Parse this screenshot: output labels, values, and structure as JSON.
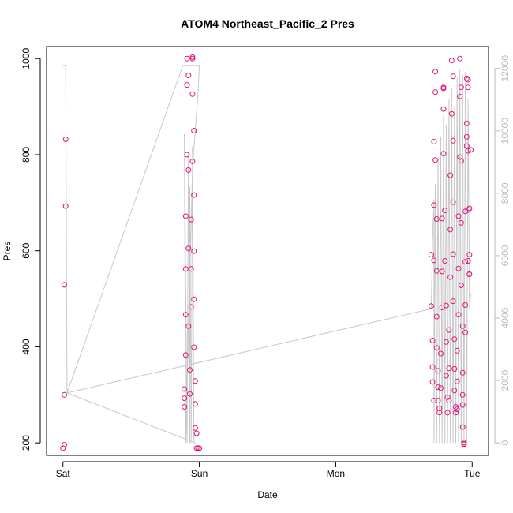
{
  "chart_data": {
    "type": "scatter",
    "title": "ATOM4 Northeast_Pacific_2 Pres",
    "xlabel": "Date",
    "ylabel": "Pres",
    "x_ticks": [
      "Sat",
      "Sun",
      "Mon",
      "Tue"
    ],
    "x_tick_positions": [
      0,
      1,
      2,
      3
    ],
    "y_ticks": [
      200,
      400,
      600,
      800,
      1000
    ],
    "ylim": [
      174,
      1025
    ],
    "xlim": [
      -0.12,
      3.12
    ],
    "y2_ticks": [
      0,
      2000,
      4000,
      6000,
      8000,
      10000,
      12000
    ],
    "y2lim": [
      -400,
      12700
    ],
    "colors": {
      "points": "#e0147a",
      "line": "#c8c8c8",
      "right_axis": "#bbbbbb"
    },
    "series": [
      {
        "kind": "points",
        "values": [
          {
            "x": 0.0,
            "y": 189
          },
          {
            "x": 0.01,
            "y": 196
          },
          {
            "x": 0.01,
            "y": 300
          },
          {
            "x": 0.01,
            "y": 529
          },
          {
            "x": 0.02,
            "y": 693
          },
          {
            "x": 0.02,
            "y": 832
          },
          {
            "x": 0.89,
            "y": 275
          },
          {
            "x": 0.89,
            "y": 293
          },
          {
            "x": 0.89,
            "y": 312
          },
          {
            "x": 0.9,
            "y": 383
          },
          {
            "x": 0.9,
            "y": 467
          },
          {
            "x": 0.9,
            "y": 562
          },
          {
            "x": 0.9,
            "y": 672
          },
          {
            "x": 0.91,
            "y": 800
          },
          {
            "x": 0.91,
            "y": 945
          },
          {
            "x": 0.91,
            "y": 1000
          },
          {
            "x": 0.92,
            "y": 965
          },
          {
            "x": 0.92,
            "y": 768
          },
          {
            "x": 0.92,
            "y": 605
          },
          {
            "x": 0.92,
            "y": 443
          },
          {
            "x": 0.93,
            "y": 352
          },
          {
            "x": 0.93,
            "y": 302
          },
          {
            "x": 0.94,
            "y": 483
          },
          {
            "x": 0.94,
            "y": 562
          },
          {
            "x": 0.94,
            "y": 665
          },
          {
            "x": 0.95,
            "y": 786
          },
          {
            "x": 0.95,
            "y": 926
          },
          {
            "x": 0.95,
            "y": 1003
          },
          {
            "x": 0.95,
            "y": 1000
          },
          {
            "x": 0.96,
            "y": 850
          },
          {
            "x": 0.96,
            "y": 716
          },
          {
            "x": 0.96,
            "y": 599
          },
          {
            "x": 0.96,
            "y": 499
          },
          {
            "x": 0.96,
            "y": 399
          },
          {
            "x": 0.97,
            "y": 329
          },
          {
            "x": 0.97,
            "y": 281
          },
          {
            "x": 0.97,
            "y": 231
          },
          {
            "x": 0.98,
            "y": 220
          },
          {
            "x": 0.98,
            "y": 189
          },
          {
            "x": 0.99,
            "y": 189
          },
          {
            "x": 1.0,
            "y": 189
          },
          {
            "x": 2.7,
            "y": 592
          },
          {
            "x": 2.7,
            "y": 485
          },
          {
            "x": 2.71,
            "y": 413
          },
          {
            "x": 2.71,
            "y": 358
          },
          {
            "x": 2.71,
            "y": 327
          },
          {
            "x": 2.72,
            "y": 288
          },
          {
            "x": 2.72,
            "y": 580
          },
          {
            "x": 2.72,
            "y": 695
          },
          {
            "x": 2.72,
            "y": 827
          },
          {
            "x": 2.73,
            "y": 973
          },
          {
            "x": 2.73,
            "y": 930
          },
          {
            "x": 2.73,
            "y": 789
          },
          {
            "x": 2.74,
            "y": 666
          },
          {
            "x": 2.74,
            "y": 558
          },
          {
            "x": 2.74,
            "y": 463
          },
          {
            "x": 2.74,
            "y": 398
          },
          {
            "x": 2.75,
            "y": 350
          },
          {
            "x": 2.75,
            "y": 316
          },
          {
            "x": 2.75,
            "y": 288
          },
          {
            "x": 2.76,
            "y": 263
          },
          {
            "x": 2.76,
            "y": 272
          },
          {
            "x": 2.77,
            "y": 314
          },
          {
            "x": 2.77,
            "y": 386
          },
          {
            "x": 2.78,
            "y": 482
          },
          {
            "x": 2.78,
            "y": 557
          },
          {
            "x": 2.78,
            "y": 667
          },
          {
            "x": 2.79,
            "y": 802
          },
          {
            "x": 2.79,
            "y": 938
          },
          {
            "x": 2.79,
            "y": 940
          },
          {
            "x": 2.79,
            "y": 895
          },
          {
            "x": 2.8,
            "y": 684
          },
          {
            "x": 2.8,
            "y": 579
          },
          {
            "x": 2.81,
            "y": 486
          },
          {
            "x": 2.81,
            "y": 410
          },
          {
            "x": 2.81,
            "y": 340
          },
          {
            "x": 2.82,
            "y": 295
          },
          {
            "x": 2.82,
            "y": 263
          },
          {
            "x": 2.83,
            "y": 288
          },
          {
            "x": 2.83,
            "y": 355
          },
          {
            "x": 2.83,
            "y": 435
          },
          {
            "x": 2.84,
            "y": 545
          },
          {
            "x": 2.84,
            "y": 644
          },
          {
            "x": 2.84,
            "y": 757
          },
          {
            "x": 2.85,
            "y": 885
          },
          {
            "x": 2.85,
            "y": 996
          },
          {
            "x": 2.86,
            "y": 963
          },
          {
            "x": 2.86,
            "y": 829
          },
          {
            "x": 2.86,
            "y": 701
          },
          {
            "x": 2.86,
            "y": 593
          },
          {
            "x": 2.86,
            "y": 495
          },
          {
            "x": 2.87,
            "y": 416
          },
          {
            "x": 2.87,
            "y": 354
          },
          {
            "x": 2.87,
            "y": 309
          },
          {
            "x": 2.88,
            "y": 275
          },
          {
            "x": 2.88,
            "y": 263
          },
          {
            "x": 2.89,
            "y": 270
          },
          {
            "x": 2.89,
            "y": 328
          },
          {
            "x": 2.89,
            "y": 392
          },
          {
            "x": 2.9,
            "y": 467
          },
          {
            "x": 2.9,
            "y": 563
          },
          {
            "x": 2.9,
            "y": 672
          },
          {
            "x": 2.91,
            "y": 795
          },
          {
            "x": 2.91,
            "y": 921
          },
          {
            "x": 2.91,
            "y": 1000
          },
          {
            "x": 2.92,
            "y": 940
          },
          {
            "x": 2.92,
            "y": 787
          },
          {
            "x": 2.92,
            "y": 658
          },
          {
            "x": 2.92,
            "y": 528
          },
          {
            "x": 2.93,
            "y": 443
          },
          {
            "x": 2.93,
            "y": 346
          },
          {
            "x": 2.93,
            "y": 300
          },
          {
            "x": 2.93,
            "y": 279
          },
          {
            "x": 2.93,
            "y": 233
          },
          {
            "x": 2.94,
            "y": 201
          },
          {
            "x": 2.94,
            "y": 197
          },
          {
            "x": 2.94,
            "y": 198
          },
          {
            "x": 2.95,
            "y": 430
          },
          {
            "x": 2.95,
            "y": 487
          },
          {
            "x": 2.95,
            "y": 577
          },
          {
            "x": 2.95,
            "y": 682
          },
          {
            "x": 2.96,
            "y": 818
          },
          {
            "x": 2.96,
            "y": 837
          },
          {
            "x": 2.96,
            "y": 865
          },
          {
            "x": 2.96,
            "y": 959
          },
          {
            "x": 2.97,
            "y": 956
          },
          {
            "x": 2.97,
            "y": 940
          },
          {
            "x": 2.97,
            "y": 808
          },
          {
            "x": 2.97,
            "y": 685
          },
          {
            "x": 2.97,
            "y": 579
          },
          {
            "x": 2.98,
            "y": 551
          },
          {
            "x": 2.98,
            "y": 551
          },
          {
            "x": 2.98,
            "y": 592
          },
          {
            "x": 2.98,
            "y": 688
          },
          {
            "x": 2.99,
            "y": 810
          }
        ]
      },
      {
        "kind": "line",
        "axis": "right",
        "values": [
          {
            "x": 0.0,
            "y": 12100
          },
          {
            "x": 0.02,
            "y": 12100
          },
          {
            "x": 0.03,
            "y": 1600
          },
          {
            "x": 0.88,
            "y": 12100
          },
          {
            "x": 1.0,
            "y": 12100
          },
          {
            "x": 0.99,
            "y": 11200
          },
          {
            "x": 0.95,
            "y": 8800
          },
          {
            "x": 0.9,
            "y": 0
          },
          {
            "x": 0.89,
            "y": 9900
          },
          {
            "x": 0.91,
            "y": 0
          },
          {
            "x": 0.92,
            "y": 9300
          },
          {
            "x": 0.93,
            "y": 0
          },
          {
            "x": 0.93,
            "y": 8200
          },
          {
            "x": 0.94,
            "y": 0
          },
          {
            "x": 0.95,
            "y": 9500
          },
          {
            "x": 0.96,
            "y": 0
          },
          {
            "x": 0.97,
            "y": 0
          },
          {
            "x": 0.03,
            "y": 1600
          },
          {
            "x": 2.7,
            "y": 4300
          },
          {
            "x": 2.71,
            "y": 6500
          },
          {
            "x": 2.72,
            "y": 7800
          },
          {
            "x": 2.72,
            "y": 0
          },
          {
            "x": 2.73,
            "y": 8300
          },
          {
            "x": 2.74,
            "y": 0
          },
          {
            "x": 2.75,
            "y": 9100
          },
          {
            "x": 2.76,
            "y": 0
          },
          {
            "x": 2.77,
            "y": 9800
          },
          {
            "x": 2.78,
            "y": 0
          },
          {
            "x": 2.79,
            "y": 10500
          },
          {
            "x": 2.8,
            "y": 0
          },
          {
            "x": 2.81,
            "y": 10200
          },
          {
            "x": 2.82,
            "y": 0
          },
          {
            "x": 2.83,
            "y": 11000
          },
          {
            "x": 2.84,
            "y": 0
          },
          {
            "x": 2.85,
            "y": 11400
          },
          {
            "x": 2.86,
            "y": 0
          },
          {
            "x": 2.87,
            "y": 10800
          },
          {
            "x": 2.88,
            "y": 0
          },
          {
            "x": 2.89,
            "y": 11700
          },
          {
            "x": 2.9,
            "y": 0
          },
          {
            "x": 2.91,
            "y": 12000
          },
          {
            "x": 2.92,
            "y": 0
          },
          {
            "x": 2.93,
            "y": 11800
          },
          {
            "x": 2.94,
            "y": 0
          },
          {
            "x": 2.95,
            "y": 11900
          },
          {
            "x": 2.96,
            "y": 0
          },
          {
            "x": 2.97,
            "y": 11000
          },
          {
            "x": 2.98,
            "y": 4300
          },
          {
            "x": 2.99,
            "y": 4800
          }
        ]
      }
    ]
  }
}
